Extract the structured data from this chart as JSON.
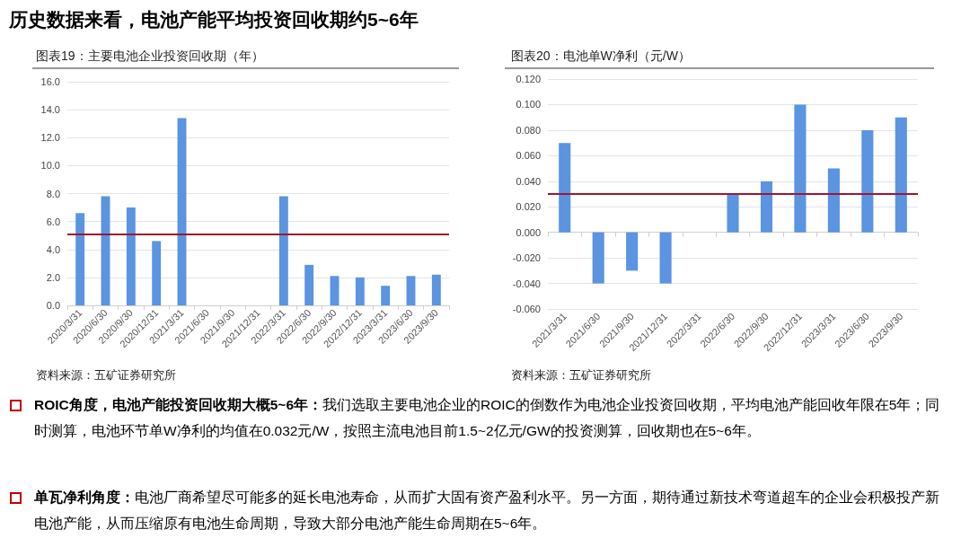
{
  "chart_data": [
    {
      "type": "bar",
      "title": "图表19：主要电池企业投资回收期（年）",
      "categories": [
        "2020/3/31",
        "2020/6/30",
        "2020/9/30",
        "2020/12/31",
        "2021/3/31",
        "2021/6/30",
        "2021/9/30",
        "2021/12/31",
        "2022/3/31",
        "2022/6/30",
        "2022/9/30",
        "2022/12/31",
        "2023/3/31",
        "2023/6/30",
        "2023/9/30"
      ],
      "values": [
        6.6,
        7.8,
        7.0,
        4.6,
        13.4,
        null,
        null,
        null,
        7.8,
        2.9,
        2.1,
        2.0,
        1.4,
        2.1,
        2.2
      ],
      "color": "#5b94e0",
      "ylim": [
        0,
        16
      ],
      "yticks": [
        {
          "value": 0,
          "label": "0.0"
        },
        {
          "value": 2,
          "label": "2.0"
        },
        {
          "value": 4,
          "label": "4.0"
        },
        {
          "value": 6,
          "label": "6.0"
        },
        {
          "value": 8,
          "label": "8.0"
        },
        {
          "value": 10,
          "label": "10.0"
        },
        {
          "value": 12,
          "label": "12.0"
        },
        {
          "value": 14,
          "label": "14.0"
        },
        {
          "value": 16,
          "label": "16.0"
        }
      ],
      "grid": "y",
      "ref_lines": [
        {
          "axis": "y",
          "value": 5.1,
          "color": "#a0162e"
        }
      ],
      "annotations": [
        "历史数据来看，电池产能平均投资回收期约5~6年",
        "资料来源：五矿证券研究所",
        "ROIC角度，电池产能投资回收期大概5~6年：",
        "我们选取主要电池企业的ROIC的倒数作为电池企业投资回收期，平均电池产能回收年限在5年；同时测算，电池环节单W净利的均值在0.032元/W，按照主流电池目前1.5~2亿元/GW的投资测算，回收期也在5~6年。",
        "单瓦净利角度：",
        "电池厂商希望尽可能多的延长电池寿命，从而扩大固有资产盈利水平。另一方面，期待通过新技术弯道超车的企业会积极投产新电池产能，从而压缩原有电池生命周期，导致大部分电池产能生命周期在5~6年。"
      ]
    },
    {
      "type": "bar",
      "title": "图表20：电池单W净利（元/W）",
      "categories": [
        "2021/3/31",
        "2021/6/30",
        "2021/9/30",
        "2021/12/31",
        "2022/3/31",
        "2022/6/30",
        "2022/9/30",
        "2022/12/31",
        "2023/3/31",
        "2023/6/30",
        "2023/9/30"
      ],
      "values": [
        0.07,
        -0.04,
        -0.03,
        -0.04,
        null,
        0.03,
        0.04,
        0.1,
        0.05,
        0.08,
        0.09
      ],
      "color": "#5b94e0",
      "ylim": [
        -0.06,
        0.12
      ],
      "yticks": [
        {
          "value": -0.06,
          "label": "-0.060"
        },
        {
          "value": -0.04,
          "label": "-0.040"
        },
        {
          "value": -0.02,
          "label": "-0.020"
        },
        {
          "value": 0,
          "label": "0.000"
        },
        {
          "value": 0.02,
          "label": "0.020"
        },
        {
          "value": 0.04,
          "label": "0.040"
        },
        {
          "value": 0.06,
          "label": "0.060"
        },
        {
          "value": 0.08,
          "label": "0.080"
        },
        {
          "value": 0.1,
          "label": "0.100"
        },
        {
          "value": 0.12,
          "label": "0.120"
        }
      ],
      "grid": "y",
      "ref_lines": [
        {
          "axis": "y",
          "value": 0.03,
          "color": "#a0162e"
        }
      ],
      "annotations": [
        "资料来源：五矿证券研究所"
      ]
    }
  ]
}
